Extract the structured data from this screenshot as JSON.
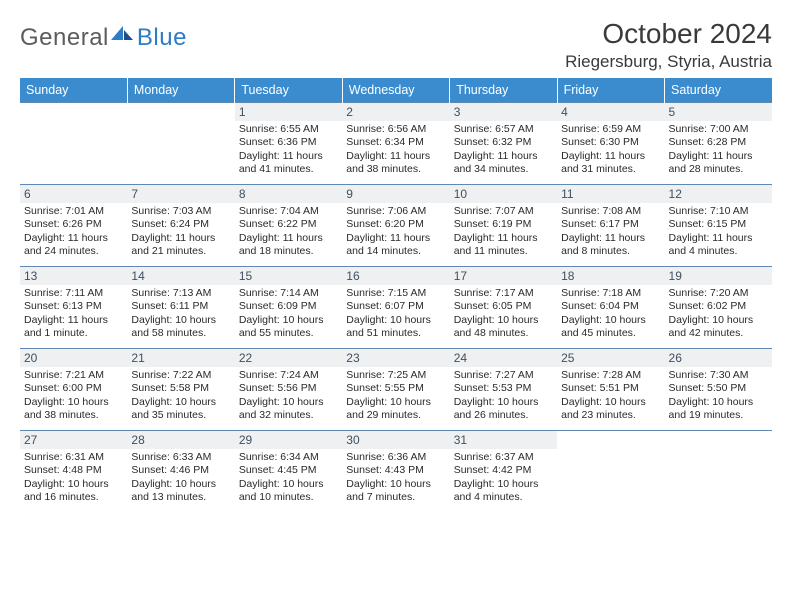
{
  "logo": {
    "gray": "General",
    "blue": "Blue"
  },
  "title": "October 2024",
  "location": "Riegersburg, Styria, Austria",
  "colors": {
    "header_bg": "#3a8ccf",
    "header_text": "#ffffff",
    "daynum_bg": "#eef0f2",
    "border": "#6089b0",
    "logo_gray": "#5c5c5c",
    "logo_blue": "#2f7cc4"
  },
  "weekdays": [
    "Sunday",
    "Monday",
    "Tuesday",
    "Wednesday",
    "Thursday",
    "Friday",
    "Saturday"
  ],
  "weeks": [
    [
      null,
      null,
      {
        "n": "1",
        "sr": "6:55 AM",
        "ss": "6:36 PM",
        "dl": "11 hours and 41 minutes."
      },
      {
        "n": "2",
        "sr": "6:56 AM",
        "ss": "6:34 PM",
        "dl": "11 hours and 38 minutes."
      },
      {
        "n": "3",
        "sr": "6:57 AM",
        "ss": "6:32 PM",
        "dl": "11 hours and 34 minutes."
      },
      {
        "n": "4",
        "sr": "6:59 AM",
        "ss": "6:30 PM",
        "dl": "11 hours and 31 minutes."
      },
      {
        "n": "5",
        "sr": "7:00 AM",
        "ss": "6:28 PM",
        "dl": "11 hours and 28 minutes."
      }
    ],
    [
      {
        "n": "6",
        "sr": "7:01 AM",
        "ss": "6:26 PM",
        "dl": "11 hours and 24 minutes."
      },
      {
        "n": "7",
        "sr": "7:03 AM",
        "ss": "6:24 PM",
        "dl": "11 hours and 21 minutes."
      },
      {
        "n": "8",
        "sr": "7:04 AM",
        "ss": "6:22 PM",
        "dl": "11 hours and 18 minutes."
      },
      {
        "n": "9",
        "sr": "7:06 AM",
        "ss": "6:20 PM",
        "dl": "11 hours and 14 minutes."
      },
      {
        "n": "10",
        "sr": "7:07 AM",
        "ss": "6:19 PM",
        "dl": "11 hours and 11 minutes."
      },
      {
        "n": "11",
        "sr": "7:08 AM",
        "ss": "6:17 PM",
        "dl": "11 hours and 8 minutes."
      },
      {
        "n": "12",
        "sr": "7:10 AM",
        "ss": "6:15 PM",
        "dl": "11 hours and 4 minutes."
      }
    ],
    [
      {
        "n": "13",
        "sr": "7:11 AM",
        "ss": "6:13 PM",
        "dl": "11 hours and 1 minute."
      },
      {
        "n": "14",
        "sr": "7:13 AM",
        "ss": "6:11 PM",
        "dl": "10 hours and 58 minutes."
      },
      {
        "n": "15",
        "sr": "7:14 AM",
        "ss": "6:09 PM",
        "dl": "10 hours and 55 minutes."
      },
      {
        "n": "16",
        "sr": "7:15 AM",
        "ss": "6:07 PM",
        "dl": "10 hours and 51 minutes."
      },
      {
        "n": "17",
        "sr": "7:17 AM",
        "ss": "6:05 PM",
        "dl": "10 hours and 48 minutes."
      },
      {
        "n": "18",
        "sr": "7:18 AM",
        "ss": "6:04 PM",
        "dl": "10 hours and 45 minutes."
      },
      {
        "n": "19",
        "sr": "7:20 AM",
        "ss": "6:02 PM",
        "dl": "10 hours and 42 minutes."
      }
    ],
    [
      {
        "n": "20",
        "sr": "7:21 AM",
        "ss": "6:00 PM",
        "dl": "10 hours and 38 minutes."
      },
      {
        "n": "21",
        "sr": "7:22 AM",
        "ss": "5:58 PM",
        "dl": "10 hours and 35 minutes."
      },
      {
        "n": "22",
        "sr": "7:24 AM",
        "ss": "5:56 PM",
        "dl": "10 hours and 32 minutes."
      },
      {
        "n": "23",
        "sr": "7:25 AM",
        "ss": "5:55 PM",
        "dl": "10 hours and 29 minutes."
      },
      {
        "n": "24",
        "sr": "7:27 AM",
        "ss": "5:53 PM",
        "dl": "10 hours and 26 minutes."
      },
      {
        "n": "25",
        "sr": "7:28 AM",
        "ss": "5:51 PM",
        "dl": "10 hours and 23 minutes."
      },
      {
        "n": "26",
        "sr": "7:30 AM",
        "ss": "5:50 PM",
        "dl": "10 hours and 19 minutes."
      }
    ],
    [
      {
        "n": "27",
        "sr": "6:31 AM",
        "ss": "4:48 PM",
        "dl": "10 hours and 16 minutes."
      },
      {
        "n": "28",
        "sr": "6:33 AM",
        "ss": "4:46 PM",
        "dl": "10 hours and 13 minutes."
      },
      {
        "n": "29",
        "sr": "6:34 AM",
        "ss": "4:45 PM",
        "dl": "10 hours and 10 minutes."
      },
      {
        "n": "30",
        "sr": "6:36 AM",
        "ss": "4:43 PM",
        "dl": "10 hours and 7 minutes."
      },
      {
        "n": "31",
        "sr": "6:37 AM",
        "ss": "4:42 PM",
        "dl": "10 hours and 4 minutes."
      },
      null,
      null
    ]
  ],
  "labels": {
    "sunrise": "Sunrise:",
    "sunset": "Sunset:",
    "daylight": "Daylight:"
  }
}
